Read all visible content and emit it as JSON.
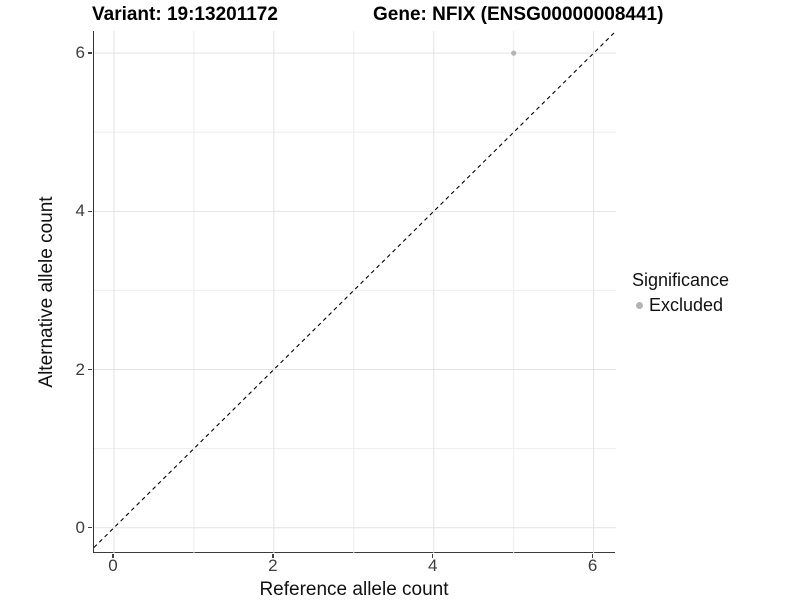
{
  "titles": {
    "variant": "Variant: 19:13201172",
    "gene": "Gene: NFIX (ENSG00000008441)"
  },
  "chart_data": {
    "type": "scatter",
    "xlabel": "Reference allele count",
    "ylabel": "Alternative allele count",
    "xlim": [
      -0.25,
      6.28
    ],
    "ylim": [
      -0.32,
      6.28
    ],
    "x_major_ticks": [
      0,
      2,
      4,
      6
    ],
    "y_major_ticks": [
      0,
      2,
      4,
      6
    ],
    "x_minor_gridlines": [
      1,
      3,
      5
    ],
    "y_minor_gridlines": [
      1,
      3,
      5
    ],
    "grid": "on",
    "identity_line": {
      "style": "dashed",
      "slope": 1,
      "intercept": 0
    },
    "points": [
      {
        "x": 5,
        "y": 6,
        "significance": "Excluded"
      }
    ],
    "legend": {
      "position": "right",
      "title": "Significance",
      "items": [
        {
          "label": "Excluded",
          "color": "#b4b4b4"
        }
      ]
    },
    "colors": {
      "point": "#b4b4b4",
      "grid_major": "#e3e3e3",
      "grid_minor": "#ededed",
      "axis_line": "#333333",
      "identity_line": "#000000"
    }
  }
}
